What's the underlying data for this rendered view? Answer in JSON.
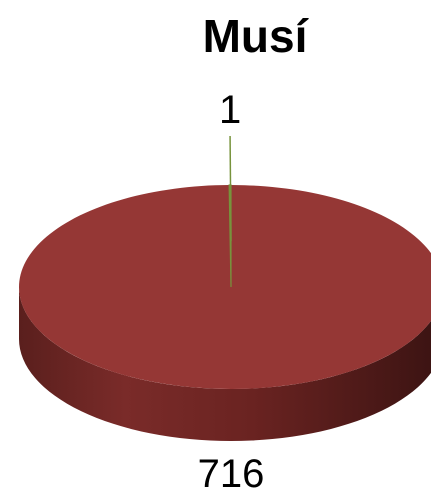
{
  "chart_data": {
    "type": "pie",
    "title": "Musí",
    "categories": [
      "",
      ""
    ],
    "values": [
      716,
      1
    ],
    "data_labels": [
      "716",
      "1"
    ],
    "colors": [
      "#953735",
      "#77933C"
    ],
    "style": "3d",
    "legend": "none"
  }
}
